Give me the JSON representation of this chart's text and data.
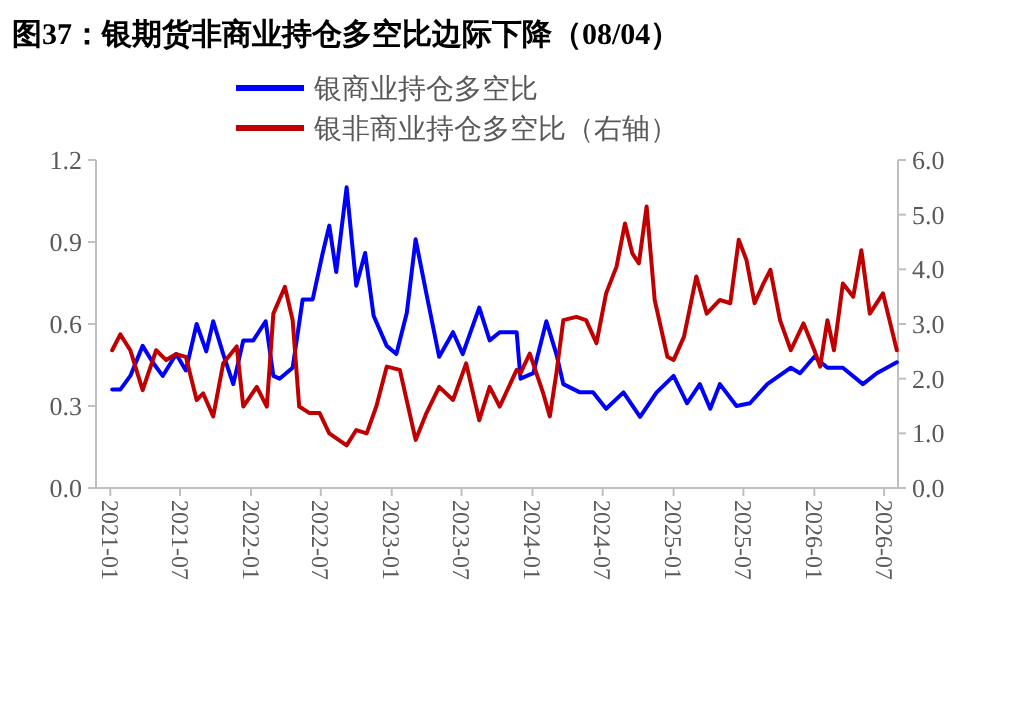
{
  "chart_data": {
    "type": "line",
    "title": "图37：银期货非商业持仓多空比边际下降（08/04）",
    "legend": "top",
    "grid": false,
    "xlim": [
      "2020-11-25",
      "2026-08-06"
    ],
    "xticks": [
      "2021-01",
      "2021-07",
      "2022-01",
      "2022-07",
      "2023-01",
      "2023-07",
      "2024-01",
      "2024-07",
      "2025-01",
      "2025-07",
      "2026-01",
      "2026-07"
    ],
    "ylim": [
      0,
      1.2
    ],
    "yticks": [
      {
        "value": 0,
        "label": "0.0"
      },
      {
        "value": 0.3,
        "label": "0.3"
      },
      {
        "value": 0.6,
        "label": "0.6"
      },
      {
        "value": 0.9,
        "label": "0.9"
      },
      {
        "value": 1.2,
        "label": "1.2"
      }
    ],
    "y2lim": [
      0,
      6
    ],
    "y2ticks": [
      {
        "value": 0,
        "label": "0.0"
      },
      {
        "value": 1,
        "label": "1.0"
      },
      {
        "value": 2,
        "label": "2.0"
      },
      {
        "value": 3,
        "label": "3.0"
      },
      {
        "value": 4,
        "label": "4.0"
      },
      {
        "value": 5,
        "label": "5.0"
      },
      {
        "value": 6,
        "label": "6.0"
      }
    ],
    "series": [
      {
        "name": "银商业持仓多空比",
        "color": "#0000ff",
        "x": [
          "2021-01-06",
          "2021-01-27",
          "2021-02-22",
          "2021-03-26",
          "2021-04-21",
          "2021-05-17",
          "2021-06-21",
          "2021-07-16",
          "2021-08-13",
          "2021-09-07",
          "2021-09-25",
          "2021-10-21",
          "2021-11-16",
          "2021-12-12",
          "2022-01-07",
          "2022-02-08",
          "2022-02-28",
          "2022-03-16",
          "2022-04-19",
          "2022-05-15",
          "2022-06-10",
          "2022-07-06",
          "2022-07-23",
          "2022-08-10",
          "2022-09-06",
          "2022-10-01",
          "2022-10-24",
          "2022-11-15",
          "2022-12-19",
          "2023-01-13",
          "2023-02-09",
          "2023-03-04",
          "2023-04-01",
          "2023-05-04",
          "2023-06-09",
          "2023-07-04",
          "2023-08-16",
          "2023-09-12",
          "2023-10-08",
          "2023-11-21",
          "2023-12-01",
          "2024-01-03",
          "2024-02-06",
          "2024-03-03",
          "2024-03-21",
          "2024-05-03",
          "2024-06-06",
          "2024-07-10",
          "2024-08-24",
          "2024-10-06",
          "2024-11-18",
          "2025-01-01",
          "2025-02-05",
          "2025-03-10",
          "2025-04-06",
          "2025-05-01",
          "2025-06-13",
          "2025-07-18",
          "2025-09-01",
          "2025-11-01",
          "2025-11-25",
          "2026-01-01",
          "2026-02-04",
          "2026-03-16",
          "2026-05-07",
          "2026-06-12",
          "2026-08-03"
        ],
        "values": [
          0.36,
          0.36,
          0.41,
          0.52,
          0.46,
          0.41,
          0.49,
          0.43,
          0.6,
          0.5,
          0.61,
          0.49,
          0.38,
          0.54,
          0.54,
          0.61,
          0.41,
          0.4,
          0.44,
          0.69,
          0.69,
          0.86,
          0.96,
          0.79,
          1.1,
          0.74,
          0.86,
          0.63,
          0.52,
          0.49,
          0.64,
          0.91,
          0.71,
          0.48,
          0.57,
          0.49,
          0.66,
          0.54,
          0.57,
          0.57,
          0.4,
          0.42,
          0.61,
          0.49,
          0.38,
          0.35,
          0.35,
          0.29,
          0.35,
          0.26,
          0.35,
          0.41,
          0.31,
          0.38,
          0.29,
          0.38,
          0.3,
          0.31,
          0.38,
          0.44,
          0.42,
          0.48,
          0.44,
          0.44,
          0.38,
          0.42,
          0.46
        ]
      },
      {
        "name": "银非商业持仓多空比（右轴）",
        "color": "#c00000",
        "axis": "y2",
        "x": [
          "2021-01-06",
          "2021-01-27",
          "2021-02-22",
          "2021-03-26",
          "2021-04-30",
          "2021-05-26",
          "2021-06-21",
          "2021-07-16",
          "2021-08-13",
          "2021-08-30",
          "2021-09-25",
          "2021-10-21",
          "2021-11-25",
          "2021-12-12",
          "2022-01-16",
          "2022-02-11",
          "2022-02-28",
          "2022-03-30",
          "2022-04-19",
          "2022-05-06",
          "2022-06-02",
          "2022-06-28",
          "2022-07-23",
          "2022-09-06",
          "2022-10-01",
          "2022-10-28",
          "2022-11-22",
          "2022-12-19",
          "2023-01-22",
          "2023-03-04",
          "2023-04-01",
          "2023-05-04",
          "2023-06-09",
          "2023-07-13",
          "2023-08-16",
          "2023-09-12",
          "2023-10-08",
          "2023-11-21",
          "2023-12-01",
          "2023-12-25",
          "2024-01-29",
          "2024-02-15",
          "2024-03-03",
          "2024-03-21",
          "2024-04-24",
          "2024-05-19",
          "2024-06-15",
          "2024-07-10",
          "2024-08-06",
          "2024-08-28",
          "2024-09-16",
          "2024-10-03",
          "2024-10-23",
          "2024-11-13",
          "2024-12-16",
          "2025-01-01",
          "2025-01-28",
          "2025-03-01",
          "2025-03-28",
          "2025-05-01",
          "2025-05-28",
          "2025-06-19",
          "2025-07-09",
          "2025-07-30",
          "2025-08-22",
          "2025-09-09",
          "2025-10-04",
          "2025-11-01",
          "2025-12-04",
          "2026-01-01",
          "2026-01-16",
          "2026-02-04",
          "2026-02-21",
          "2026-03-16",
          "2026-04-12",
          "2026-05-03",
          "2026-05-25",
          "2026-06-28",
          "2026-08-03"
        ],
        "values": [
          2.52,
          2.81,
          2.52,
          1.79,
          2.52,
          2.34,
          2.45,
          2.4,
          1.61,
          1.73,
          1.31,
          2.28,
          2.59,
          1.49,
          1.85,
          1.49,
          3.19,
          3.68,
          3.07,
          1.49,
          1.37,
          1.37,
          1.0,
          0.78,
          1.06,
          1.0,
          1.49,
          2.22,
          2.16,
          0.88,
          1.37,
          1.85,
          1.61,
          2.28,
          1.24,
          1.85,
          1.49,
          2.16,
          2.1,
          2.46,
          1.73,
          1.31,
          2.1,
          3.07,
          3.13,
          3.07,
          2.65,
          3.56,
          4.05,
          4.84,
          4.29,
          4.11,
          5.15,
          3.44,
          2.4,
          2.34,
          2.77,
          3.87,
          3.19,
          3.44,
          3.38,
          4.54,
          4.17,
          3.38,
          3.74,
          3.99,
          3.07,
          2.52,
          3.01,
          2.52,
          2.22,
          3.07,
          2.52,
          3.74,
          3.5,
          4.35,
          3.19,
          3.56,
          2.52
        ]
      }
    ]
  }
}
